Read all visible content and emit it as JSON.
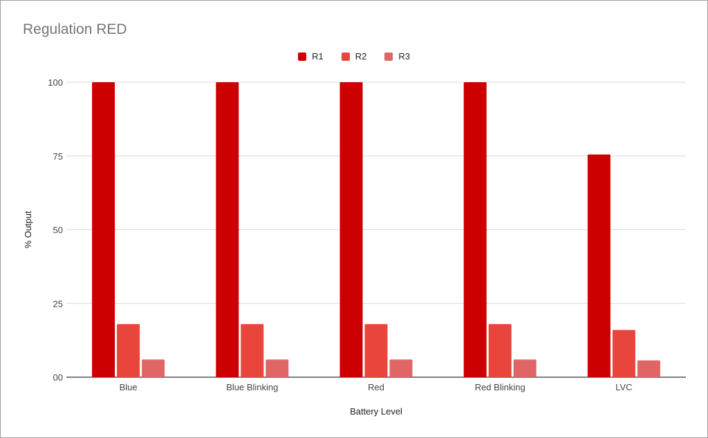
{
  "chart_data": {
    "type": "bar",
    "title": "Regulation RED",
    "xlabel": "Battery Level",
    "ylabel": "% Output",
    "categories": [
      "Blue",
      "Blue Blinking",
      "Red",
      "Red Blinking",
      "LVC"
    ],
    "series": [
      {
        "name": "R1",
        "color": "#cc0000",
        "values": [
          100,
          100,
          100,
          100,
          75.5
        ]
      },
      {
        "name": "R2",
        "color": "#e8453c",
        "values": [
          18,
          18,
          18,
          18,
          16
        ]
      },
      {
        "name": "R3",
        "color": "#e06666",
        "values": [
          6,
          6,
          6,
          6,
          5.7
        ]
      }
    ],
    "ylim": [
      0,
      100
    ],
    "yticks": [
      0,
      25,
      50,
      75,
      100
    ],
    "ytick_labels": [
      "00",
      "25",
      "50",
      "75",
      "100"
    ],
    "grid": true,
    "legend_position": "top"
  }
}
